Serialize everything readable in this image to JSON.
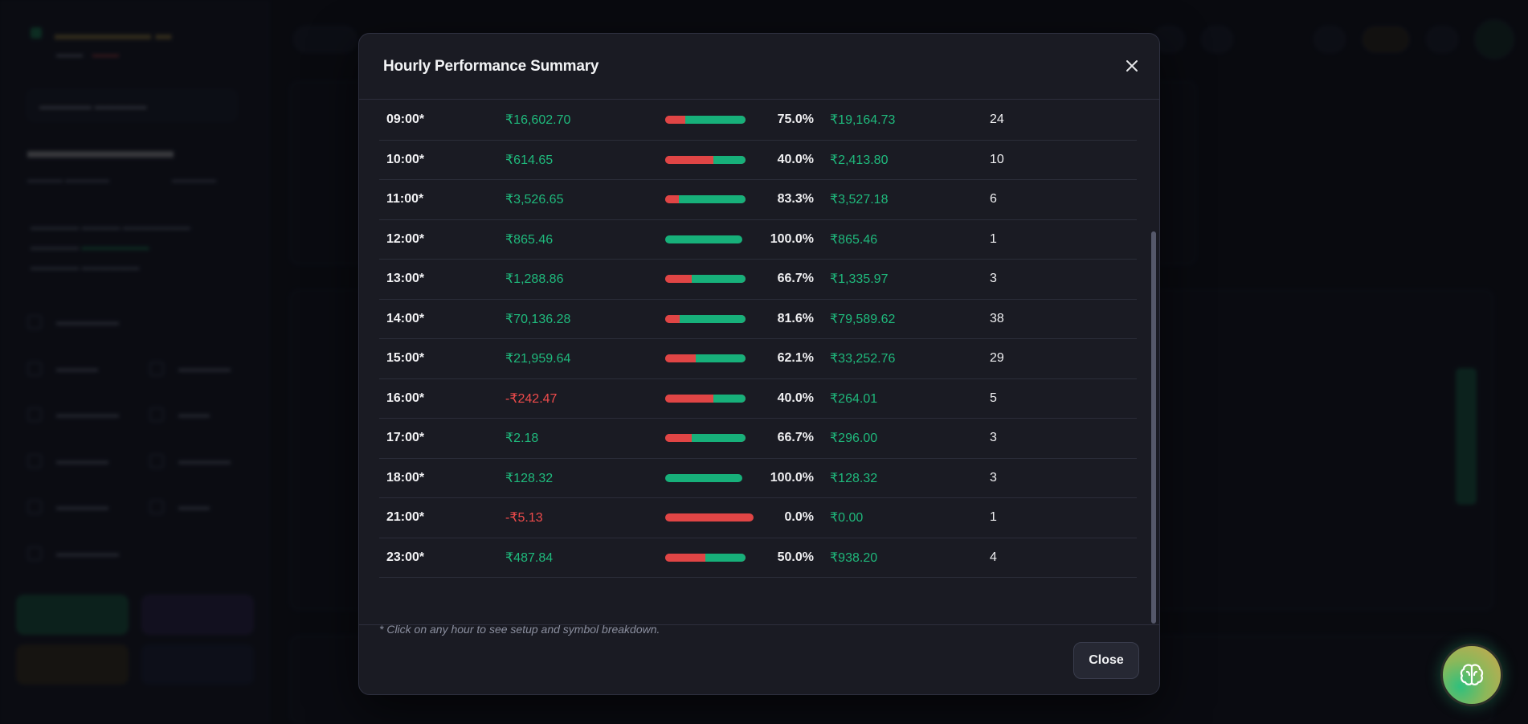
{
  "modal": {
    "title": "Hourly Performance Summary",
    "note": "* Click on any hour to see setup and symbol breakdown.",
    "close_label": "Close"
  },
  "rows": [
    {
      "hour": "09:00*",
      "pnl": "₹16,602.70",
      "pnl_sign": "pos",
      "win_rate": "75.0%",
      "win_fraction": 0.75,
      "best": "₹19,164.73",
      "trades": "24"
    },
    {
      "hour": "10:00*",
      "pnl": "₹614.65",
      "pnl_sign": "pos",
      "win_rate": "40.0%",
      "win_fraction": 0.4,
      "best": "₹2,413.80",
      "trades": "10"
    },
    {
      "hour": "11:00*",
      "pnl": "₹3,526.65",
      "pnl_sign": "pos",
      "win_rate": "83.3%",
      "win_fraction": 0.833,
      "best": "₹3,527.18",
      "trades": "6"
    },
    {
      "hour": "12:00*",
      "pnl": "₹865.46",
      "pnl_sign": "pos",
      "win_rate": "100.0%",
      "win_fraction": 1.0,
      "best": "₹865.46",
      "trades": "1"
    },
    {
      "hour": "13:00*",
      "pnl": "₹1,288.86",
      "pnl_sign": "pos",
      "win_rate": "66.7%",
      "win_fraction": 0.667,
      "best": "₹1,335.97",
      "trades": "3"
    },
    {
      "hour": "14:00*",
      "pnl": "₹70,136.28",
      "pnl_sign": "pos",
      "win_rate": "81.6%",
      "win_fraction": 0.816,
      "best": "₹79,589.62",
      "trades": "38"
    },
    {
      "hour": "15:00*",
      "pnl": "₹21,959.64",
      "pnl_sign": "pos",
      "win_rate": "62.1%",
      "win_fraction": 0.621,
      "best": "₹33,252.76",
      "trades": "29"
    },
    {
      "hour": "16:00*",
      "pnl": "-₹242.47",
      "pnl_sign": "neg",
      "win_rate": "40.0%",
      "win_fraction": 0.4,
      "best": "₹264.01",
      "trades": "5"
    },
    {
      "hour": "17:00*",
      "pnl": "₹2.18",
      "pnl_sign": "pos",
      "win_rate": "66.7%",
      "win_fraction": 0.667,
      "best": "₹296.00",
      "trades": "3"
    },
    {
      "hour": "18:00*",
      "pnl": "₹128.32",
      "pnl_sign": "pos",
      "win_rate": "100.0%",
      "win_fraction": 1.0,
      "best": "₹128.32",
      "trades": "3"
    },
    {
      "hour": "21:00*",
      "pnl": "-₹5.13",
      "pnl_sign": "neg",
      "win_rate": "0.0%",
      "win_fraction": 0.0,
      "best": "₹0.00",
      "trades": "1"
    },
    {
      "hour": "23:00*",
      "pnl": "₹487.84",
      "pnl_sign": "pos",
      "win_rate": "50.0%",
      "win_fraction": 0.5,
      "best": "₹938.20",
      "trades": "4"
    }
  ],
  "colors": {
    "positive": "#1fb97c",
    "negative": "#ef4b4b",
    "bar_win": "#17b07a",
    "bar_loss": "#e04545"
  },
  "icons": {
    "close": "close-icon",
    "fab": "brain-icon"
  }
}
